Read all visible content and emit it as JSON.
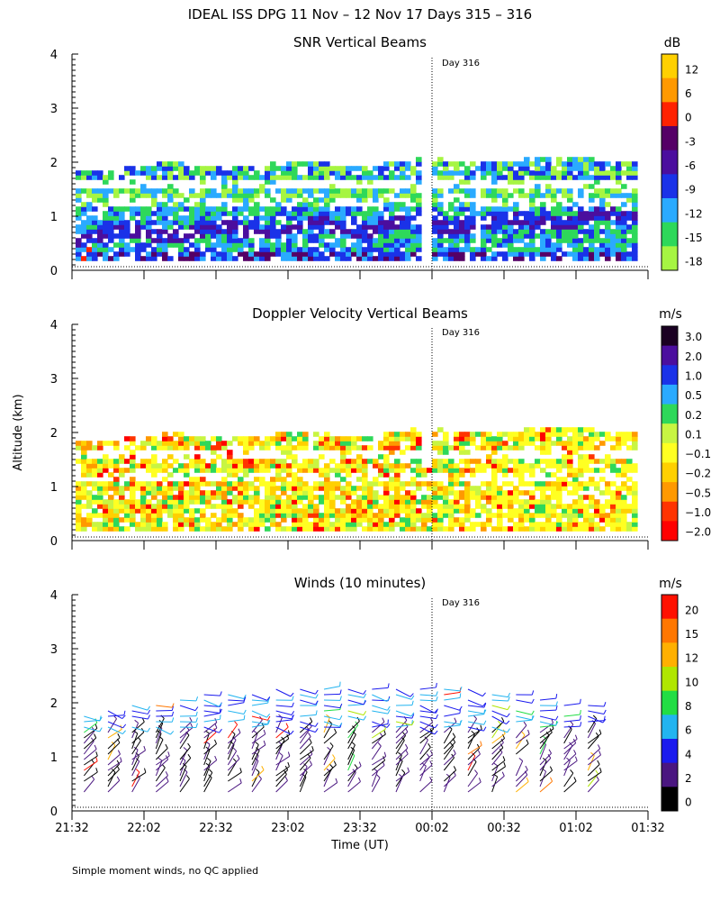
{
  "figure": {
    "title": "IDEAL ISS DPG  11 Nov – 12 Nov 17 Days 315 – 316",
    "ylabel": "Altitude (km)",
    "xlabel": "Time (UT)",
    "footnote": "Simple moment winds, no QC applied"
  },
  "chart_data": [
    {
      "type": "heatmap",
      "title": "SNR Vertical Beams",
      "day_marker": {
        "x": "00:02",
        "label": "Day 316"
      },
      "x_ticks": [
        "21:32",
        "22:02",
        "22:32",
        "23:02",
        "23:32",
        "00:02",
        "00:32",
        "01:02",
        "01:32"
      ],
      "y_ticks": [
        0,
        1,
        2,
        3,
        4
      ],
      "ylim": [
        0,
        4
      ],
      "colorbar": {
        "unit": "dB",
        "ticks": [
          "12",
          "6",
          "0",
          "-3",
          "-6",
          "-9",
          "-12",
          "-15",
          "-18"
        ],
        "colors": [
          "#ffd000",
          "#ff9900",
          "#ff2200",
          "#550066",
          "#4b0e9e",
          "#1a32e8",
          "#2aaaff",
          "#2ed85a",
          "#a6f542"
        ]
      },
      "data_extent_km": [
        0.2,
        2.1
      ],
      "grid": false
    },
    {
      "type": "heatmap",
      "title": "Doppler Velocity Vertical Beams",
      "day_marker": {
        "x": "00:02",
        "label": "Day 316"
      },
      "x_ticks": [
        "21:32",
        "22:02",
        "22:32",
        "23:02",
        "23:32",
        "00:02",
        "00:32",
        "01:02",
        "01:32"
      ],
      "y_ticks": [
        0,
        1,
        2,
        3,
        4
      ],
      "ylim": [
        0,
        4
      ],
      "colorbar": {
        "unit": "m/s",
        "ticks": [
          "3.0",
          "2.0",
          "1.0",
          "0.5",
          "0.2",
          "0.1",
          "−0.1",
          "−0.2",
          "−0.5",
          "−1.0",
          "−2.0"
        ],
        "colors": [
          "#1a0022",
          "#4b0e9e",
          "#1a32e8",
          "#2aaaff",
          "#2ed85a",
          "#c8f542",
          "#ffff22",
          "#ffd000",
          "#ff9900",
          "#ff3300",
          "#ff0000"
        ]
      },
      "data_extent_km": [
        0.2,
        2.1
      ],
      "grid": false
    },
    {
      "type": "scatter",
      "title": "Winds (10 minutes)",
      "day_marker": {
        "x": "00:02",
        "label": "Day 316"
      },
      "x_ticks": [
        "21:32",
        "22:02",
        "22:32",
        "23:02",
        "23:32",
        "00:02",
        "00:32",
        "01:02",
        "01:32"
      ],
      "y_ticks": [
        0,
        1,
        2,
        3,
        4
      ],
      "ylim": [
        0,
        4
      ],
      "colorbar": {
        "unit": "m/s",
        "ticks": [
          "20",
          "15",
          "12",
          "10",
          "8",
          "6",
          "4",
          "2",
          "0"
        ],
        "colors": [
          "#ff1100",
          "#ff7700",
          "#ffb000",
          "#b0e600",
          "#22dd44",
          "#22b4f0",
          "#1a1aee",
          "#4a1680",
          "#000000"
        ]
      },
      "data_extent_km": [
        0.3,
        2.4
      ],
      "grid": false
    }
  ]
}
